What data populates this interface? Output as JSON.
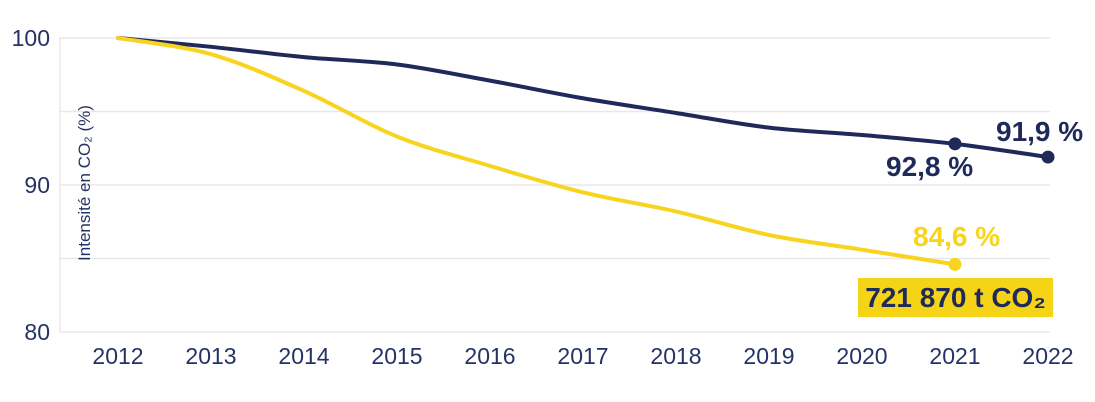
{
  "chart_data": {
    "type": "line",
    "title": "",
    "ylabel": "Intensité en CO₂ (%)",
    "xlabel": "",
    "ylim": [
      80,
      100
    ],
    "grid": "horizontal",
    "grid_values": [
      100,
      95,
      90,
      85,
      80
    ],
    "yticks": [
      "100",
      "90",
      "80"
    ],
    "x": [
      2012,
      2013,
      2014,
      2015,
      2016,
      2017,
      2018,
      2019,
      2020,
      2021,
      2022
    ],
    "series": [
      {
        "name": "dark-blue-series",
        "color": "#1F2A5B",
        "values": [
          100,
          99.4,
          98.7,
          98.2,
          97.1,
          95.9,
          94.9,
          93.9,
          93.4,
          92.8,
          91.9
        ],
        "marker_years": [
          2021,
          2022
        ]
      },
      {
        "name": "yellow-series",
        "color": "#F8D41E",
        "values": [
          100,
          98.9,
          96.4,
          93.3,
          91.3,
          89.5,
          88.2,
          86.6,
          85.6,
          84.6
        ],
        "marker_years": [
          2021
        ]
      }
    ],
    "annotations": {
      "navy_2021": {
        "text": "92,8 %",
        "year": 2021,
        "value": 92.8
      },
      "navy_2022": {
        "text": "91,9 %",
        "year": 2022,
        "value": 91.9
      },
      "yellow_2021": {
        "text": "84,6 %",
        "year": 2021,
        "value": 84.6
      },
      "total_badge": {
        "text": "721 870 t CO₂"
      }
    },
    "colors": {
      "navy": "#1F2A5B",
      "yellow": "#F8D41E",
      "badge": "#F5D316",
      "grid": "#E8E8E8",
      "text": "#253265"
    }
  }
}
